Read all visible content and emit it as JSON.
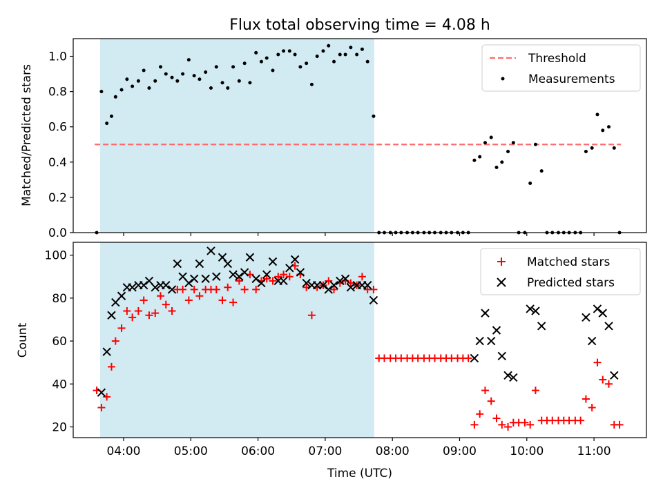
{
  "title": "Flux total observing time = 4.08 h",
  "colors": {
    "shade": "#add8e6",
    "threshold": "#ff6b6b",
    "measurement": "#000000",
    "matched": "#ff0000",
    "predicted": "#000000"
  },
  "chart_data": [
    {
      "type": "scatter",
      "ylabel": "Matched/Predicted stars",
      "ylim": [
        0,
        1.1
      ],
      "yticks": [
        "0.0",
        "0.2",
        "0.4",
        "0.6",
        "0.8",
        "1.0"
      ],
      "shaded_interval_hours": [
        3.65,
        7.73
      ],
      "legend": {
        "position": "upper right",
        "entries": [
          "Threshold",
          "Measurements"
        ]
      },
      "threshold": {
        "name": "Threshold",
        "value": 0.5,
        "x_range_hours": [
          3.57,
          11.4
        ]
      },
      "series": [
        {
          "name": "Measurements",
          "x_hours": [
            3.6,
            3.67,
            3.75,
            3.82,
            3.88,
            3.97,
            4.05,
            4.13,
            4.22,
            4.3,
            4.38,
            4.47,
            4.55,
            4.63,
            4.72,
            4.8,
            4.88,
            4.97,
            5.05,
            5.13,
            5.22,
            5.3,
            5.38,
            5.47,
            5.55,
            5.63,
            5.72,
            5.8,
            5.88,
            5.97,
            6.05,
            6.13,
            6.22,
            6.3,
            6.38,
            6.47,
            6.55,
            6.63,
            6.72,
            6.8,
            6.88,
            6.97,
            7.05,
            7.13,
            7.22,
            7.3,
            7.38,
            7.47,
            7.55,
            7.63,
            7.72,
            7.8,
            7.88,
            7.97,
            8.05,
            8.13,
            8.22,
            8.3,
            8.38,
            8.47,
            8.55,
            8.63,
            8.72,
            8.8,
            8.88,
            8.97,
            9.05,
            9.13,
            9.22,
            9.3,
            9.38,
            9.47,
            9.55,
            9.63,
            9.72,
            9.8,
            9.88,
            9.97,
            10.05,
            10.13,
            10.22,
            10.3,
            10.38,
            10.47,
            10.55,
            10.63,
            10.72,
            10.8,
            10.88,
            10.97,
            11.05,
            11.13,
            11.22,
            11.3,
            11.38
          ],
          "y": [
            0.0,
            0.8,
            0.62,
            0.66,
            0.77,
            0.81,
            0.87,
            0.83,
            0.86,
            0.92,
            0.82,
            0.86,
            0.94,
            0.9,
            0.88,
            0.86,
            0.9,
            0.98,
            0.89,
            0.87,
            0.91,
            0.82,
            0.94,
            0.85,
            0.82,
            0.94,
            0.86,
            0.96,
            0.85,
            1.02,
            0.97,
            0.99,
            0.92,
            1.01,
            1.03,
            1.03,
            1.01,
            0.94,
            0.96,
            0.84,
            1.0,
            1.03,
            1.06,
            0.97,
            1.01,
            1.01,
            1.05,
            1.01,
            1.04,
            0.97,
            0.66,
            0.0,
            0.0,
            0.0,
            0.0,
            0.0,
            0.0,
            0.0,
            0.0,
            0.0,
            0.0,
            0.0,
            0.0,
            0.0,
            0.0,
            0.0,
            0.0,
            0.0,
            0.41,
            0.43,
            0.51,
            0.54,
            0.37,
            0.4,
            0.46,
            0.51,
            0.0,
            0.0,
            0.28,
            0.5,
            0.35,
            0.0,
            0.0,
            0.0,
            0.0,
            0.0,
            0.0,
            0.0,
            0.46,
            0.48,
            0.67,
            0.58,
            0.6,
            0.48,
            0.0
          ]
        }
      ]
    },
    {
      "type": "scatter",
      "xlabel": "Time (UTC)",
      "ylabel": "Count",
      "ylim": [
        15,
        106
      ],
      "yticks": [
        "20",
        "40",
        "60",
        "80",
        "100"
      ],
      "xticks": [
        "04:00",
        "05:00",
        "06:00",
        "07:00",
        "08:00",
        "09:00",
        "10:00",
        "11:00"
      ],
      "xtick_hours": [
        4,
        5,
        6,
        7,
        8,
        9,
        10,
        11
      ],
      "xlim_hours": [
        3.25,
        11.78
      ],
      "shaded_interval_hours": [
        3.65,
        7.73
      ],
      "legend": {
        "position": "upper right",
        "entries": [
          "Matched stars",
          "Predicted stars"
        ]
      },
      "series": [
        {
          "name": "Matched stars",
          "marker": "plus",
          "x_hours": [
            3.6,
            3.67,
            3.75,
            3.82,
            3.88,
            3.97,
            4.05,
            4.13,
            4.22,
            4.3,
            4.38,
            4.47,
            4.55,
            4.63,
            4.72,
            4.8,
            4.88,
            4.97,
            5.05,
            5.13,
            5.22,
            5.3,
            5.38,
            5.47,
            5.55,
            5.63,
            5.72,
            5.8,
            5.88,
            5.97,
            6.05,
            6.13,
            6.22,
            6.3,
            6.38,
            6.47,
            6.55,
            6.63,
            6.72,
            6.8,
            6.88,
            6.97,
            7.05,
            7.13,
            7.22,
            7.3,
            7.38,
            7.47,
            7.55,
            7.63,
            7.72,
            7.8,
            7.88,
            7.97,
            8.05,
            8.13,
            8.22,
            8.3,
            8.38,
            8.47,
            8.55,
            8.63,
            8.72,
            8.8,
            8.88,
            8.97,
            9.05,
            9.13,
            9.22,
            9.3,
            9.38,
            9.47,
            9.55,
            9.63,
            9.72,
            9.8,
            9.88,
            9.97,
            10.05,
            10.13,
            10.22,
            10.3,
            10.38,
            10.47,
            10.55,
            10.63,
            10.72,
            10.8,
            10.88,
            10.97,
            11.05,
            11.13,
            11.22,
            11.3,
            11.38
          ],
          "y": [
            37,
            29,
            34,
            48,
            60,
            66,
            74,
            71,
            74,
            79,
            72,
            73,
            81,
            77,
            74,
            84,
            84,
            79,
            84,
            81,
            84,
            84,
            84,
            79,
            85,
            78,
            88,
            84,
            91,
            84,
            88,
            89,
            88,
            90,
            91,
            90,
            95,
            91,
            85,
            72,
            85,
            86,
            88,
            84,
            87,
            88,
            87,
            86,
            90,
            84,
            84,
            52,
            52,
            52,
            52,
            52,
            52,
            52,
            52,
            52,
            52,
            52,
            52,
            52,
            52,
            52,
            52,
            52,
            21,
            26,
            37,
            32,
            24,
            21,
            20,
            22,
            22,
            22,
            21,
            37,
            23,
            23,
            23,
            23,
            23,
            23,
            23,
            23,
            33,
            29,
            50,
            42,
            40,
            21,
            21
          ]
        },
        {
          "name": "Predicted stars",
          "marker": "x",
          "x_hours": [
            3.67,
            3.75,
            3.82,
            3.88,
            3.97,
            4.05,
            4.13,
            4.22,
            4.3,
            4.38,
            4.47,
            4.55,
            4.63,
            4.72,
            4.8,
            4.88,
            4.97,
            5.05,
            5.13,
            5.22,
            5.3,
            5.38,
            5.47,
            5.55,
            5.63,
            5.72,
            5.8,
            5.88,
            5.97,
            6.05,
            6.13,
            6.22,
            6.3,
            6.38,
            6.47,
            6.55,
            6.63,
            6.72,
            6.8,
            6.88,
            6.97,
            7.05,
            7.13,
            7.22,
            7.3,
            7.38,
            7.47,
            7.55,
            7.63,
            7.72,
            9.22,
            9.3,
            9.38,
            9.47,
            9.55,
            9.63,
            9.72,
            9.8,
            10.05,
            10.13,
            10.22,
            10.88,
            10.97,
            11.05,
            11.13,
            11.22,
            11.3
          ],
          "y": [
            36,
            55,
            72,
            78,
            81,
            85,
            85,
            86,
            86,
            88,
            85,
            86,
            86,
            84,
            96,
            90,
            87,
            89,
            96,
            89,
            102,
            90,
            99,
            96,
            91,
            90,
            92,
            99,
            89,
            87,
            91,
            97,
            88,
            88,
            94,
            98,
            92,
            87,
            86,
            86,
            86,
            84,
            86,
            88,
            89,
            85,
            86,
            86,
            86,
            79,
            52,
            60,
            73,
            60,
            65,
            53,
            44,
            43,
            75,
            74,
            67,
            71,
            60,
            75,
            73,
            67,
            44
          ]
        }
      ]
    }
  ]
}
